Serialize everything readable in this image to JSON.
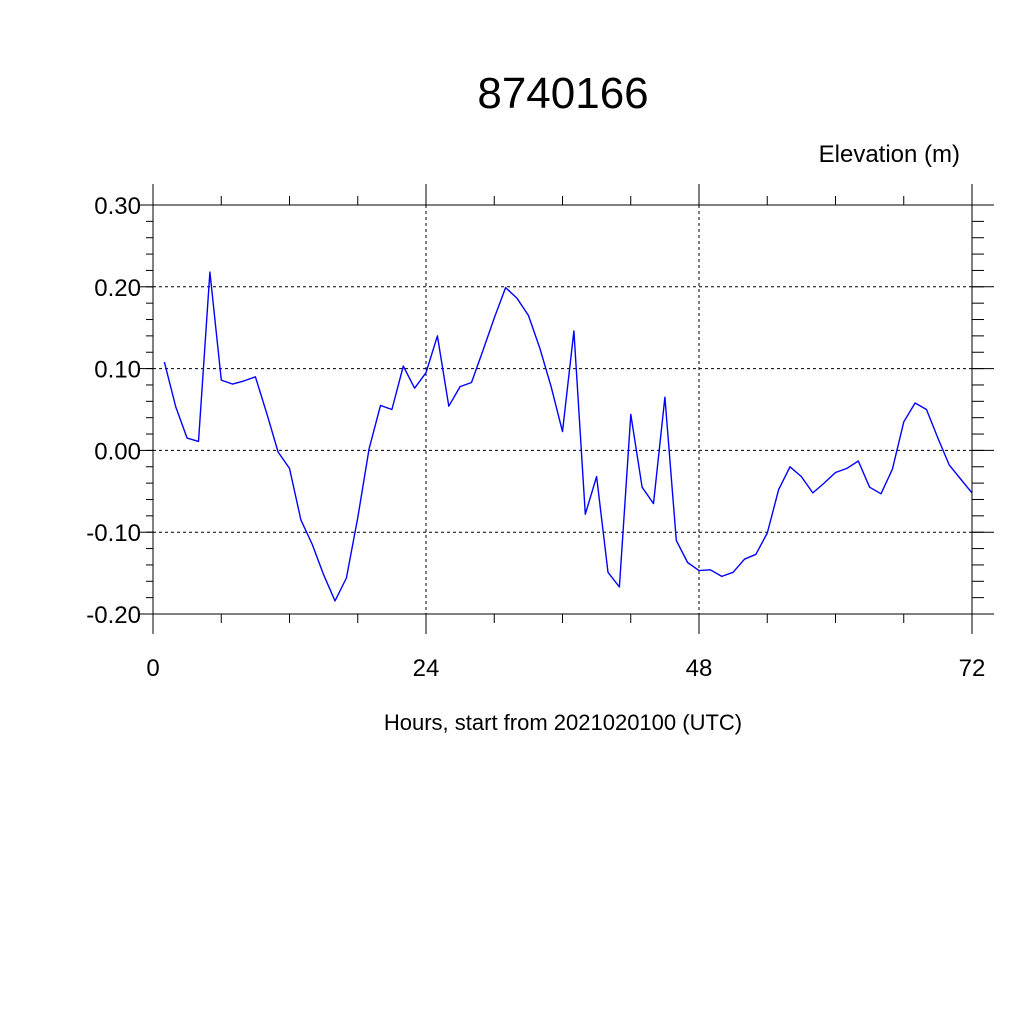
{
  "chart_data": {
    "type": "line",
    "title": "8740166",
    "unit_label": "Elevation (m)",
    "xlabel": "Hours, start from 2021020100 (UTC)",
    "ylabel": "",
    "xlim": [
      0,
      72
    ],
    "ylim": [
      -0.2,
      0.3
    ],
    "x_major_ticks": [
      0,
      24,
      48,
      72
    ],
    "x_tick_labels": [
      "0",
      "24",
      "48",
      "72"
    ],
    "x_minor_step": 6,
    "y_major_ticks": [
      -0.2,
      -0.1,
      0.0,
      0.1,
      0.2,
      0.3
    ],
    "y_tick_labels": [
      "-0.20",
      "-0.10",
      "0.00",
      "0.10",
      "0.20",
      "0.30"
    ],
    "y_minor_step": 0.02,
    "grid": true,
    "grid_style": "dashed",
    "line_color": "#0000ff",
    "series": [
      {
        "x": [
          1,
          2,
          3,
          4,
          5,
          6,
          7,
          8,
          9,
          10,
          11,
          12,
          13,
          14,
          15,
          16,
          17,
          18,
          19,
          20,
          21,
          22,
          23,
          24,
          25,
          26,
          27,
          28,
          29,
          30,
          31,
          32,
          33,
          34,
          35,
          36,
          37,
          38,
          39,
          40,
          41,
          42,
          43,
          44,
          45,
          46,
          47,
          48,
          49,
          50,
          51,
          52,
          53,
          54,
          55,
          56,
          57,
          58,
          59,
          60,
          61,
          62,
          63,
          64,
          65,
          66,
          67,
          68,
          69,
          70,
          71,
          72
        ],
        "values": [
          0.108,
          0.053,
          0.015,
          0.011,
          0.218,
          0.086,
          0.081,
          0.085,
          0.09,
          0.045,
          -0.002,
          -0.022,
          -0.085,
          -0.115,
          -0.152,
          -0.184,
          -0.156,
          -0.082,
          0.002,
          0.055,
          0.05,
          0.103,
          0.076,
          0.095,
          0.14,
          0.054,
          0.078,
          0.083,
          0.122,
          0.162,
          0.199,
          0.186,
          0.165,
          0.125,
          0.078,
          0.023,
          0.146,
          -0.078,
          -0.032,
          -0.149,
          -0.167,
          0.044,
          -0.045,
          -0.065,
          0.065,
          -0.11,
          -0.137,
          -0.147,
          -0.146,
          -0.154,
          -0.149,
          -0.133,
          -0.127,
          -0.101,
          -0.048,
          -0.02,
          -0.032,
          -0.052,
          -0.04,
          -0.027,
          -0.022,
          -0.013,
          -0.045,
          -0.053,
          -0.023,
          0.035,
          0.058,
          0.05,
          0.015,
          -0.018,
          -0.035,
          -0.052
        ]
      }
    ]
  }
}
